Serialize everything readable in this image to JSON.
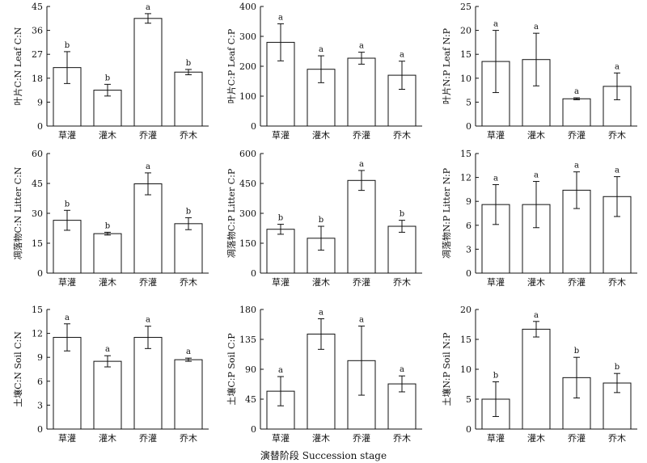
{
  "x_title": "演替阶段  Succession stage",
  "categories": [
    "草灌",
    "灌木",
    "乔灌",
    "乔木"
  ],
  "chart_data": [
    {
      "type": "bar",
      "ylabel": "叶片C:N Leaf C:N",
      "ylim": [
        0,
        45
      ],
      "yticks": [
        0,
        9,
        18,
        27,
        36,
        45
      ],
      "values": [
        22,
        13.5,
        40.5,
        20.3
      ],
      "errors": [
        6,
        2.2,
        1.8,
        1
      ],
      "letters": [
        "b",
        "b",
        "a",
        "b"
      ]
    },
    {
      "type": "bar",
      "ylabel": "叶片C:P Leaf C:P",
      "ylim": [
        0,
        400
      ],
      "yticks": [
        0,
        100,
        200,
        300,
        400
      ],
      "values": [
        280,
        190,
        227,
        170
      ],
      "errors": [
        62,
        45,
        20,
        47
      ],
      "letters": [
        "a",
        "a",
        "a",
        "a"
      ]
    },
    {
      "type": "bar",
      "ylabel": "叶片N:P Leaf N:P",
      "ylim": [
        0,
        25
      ],
      "yticks": [
        0,
        5,
        10,
        15,
        20,
        25
      ],
      "values": [
        13.5,
        13.9,
        5.7,
        8.3
      ],
      "errors": [
        6.5,
        5.5,
        0.2,
        2.8
      ],
      "letters": [
        "a",
        "a",
        "a",
        "a"
      ]
    },
    {
      "type": "bar",
      "ylabel": "凋落物C:N Litter C:N",
      "ylim": [
        0,
        60
      ],
      "yticks": [
        0,
        15,
        30,
        45,
        60
      ],
      "values": [
        26.5,
        19.8,
        44.8,
        24.8
      ],
      "errors": [
        5,
        0.7,
        5.5,
        3
      ],
      "letters": [
        "b",
        "b",
        "a",
        "b"
      ]
    },
    {
      "type": "bar",
      "ylabel": "凋落物C:P Litter C:P",
      "ylim": [
        0,
        600
      ],
      "yticks": [
        0,
        150,
        300,
        450,
        600
      ],
      "values": [
        220,
        175,
        465,
        235
      ],
      "errors": [
        25,
        60,
        50,
        30
      ],
      "letters": [
        "b",
        "b",
        "a",
        "b"
      ]
    },
    {
      "type": "bar",
      "ylabel": "凋落物N:P Litter N:P",
      "ylim": [
        0,
        15
      ],
      "yticks": [
        0,
        3,
        6,
        9,
        12,
        15
      ],
      "values": [
        8.6,
        8.6,
        10.4,
        9.6
      ],
      "errors": [
        2.5,
        2.9,
        2.3,
        2.5
      ],
      "letters": [
        "a",
        "a",
        "a",
        "a"
      ]
    },
    {
      "type": "bar",
      "ylabel": "土壤C:N Soil C:N",
      "ylim": [
        0,
        15
      ],
      "yticks": [
        0,
        3,
        6,
        9,
        12,
        15
      ],
      "values": [
        11.5,
        8.5,
        11.5,
        8.7
      ],
      "errors": [
        1.7,
        0.7,
        1.4,
        0.2
      ],
      "letters": [
        "a",
        "a",
        "a",
        "a"
      ]
    },
    {
      "type": "bar",
      "ylabel": "土壤C:P Soil C:P",
      "ylim": [
        0,
        180
      ],
      "yticks": [
        0,
        45,
        90,
        135,
        180
      ],
      "values": [
        57,
        143,
        103,
        68
      ],
      "errors": [
        22,
        23,
        52,
        12
      ],
      "letters": [
        "a",
        "a",
        "a",
        "a"
      ]
    },
    {
      "type": "bar",
      "ylabel": "土壤N:P Soil N:P",
      "ylim": [
        0,
        20
      ],
      "yticks": [
        0,
        5,
        10,
        15,
        20
      ],
      "values": [
        5,
        16.7,
        8.6,
        7.7
      ],
      "errors": [
        2.9,
        1.3,
        3.4,
        1.6
      ],
      "letters": [
        "b",
        "a",
        "b",
        "b"
      ]
    }
  ]
}
